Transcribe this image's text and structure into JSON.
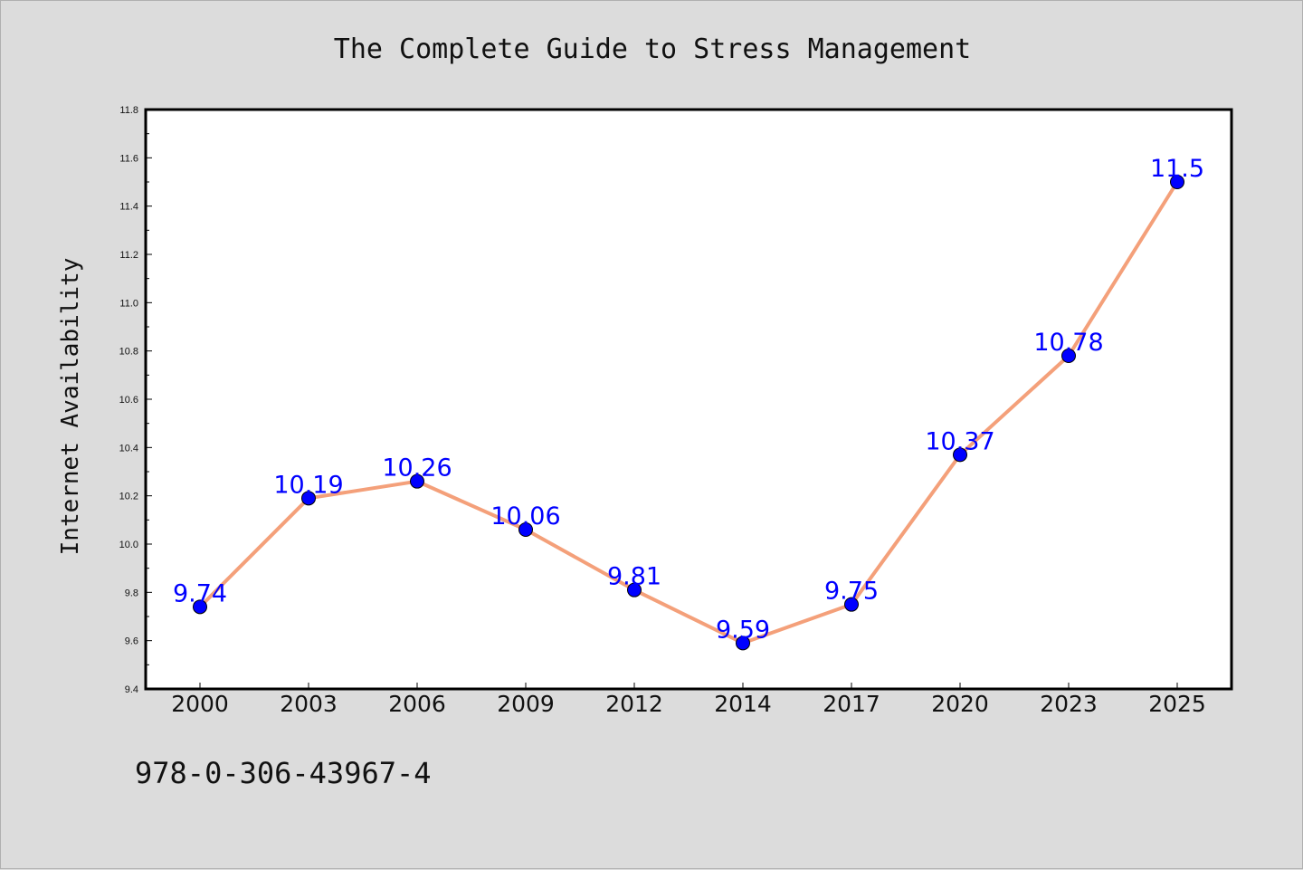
{
  "chart_data": {
    "type": "line",
    "title": "The Complete Guide to Stress Management",
    "xlabel": "",
    "ylabel": "Internet Availability",
    "categories": [
      "2000",
      "2003",
      "2006",
      "2009",
      "2012",
      "2014",
      "2017",
      "2020",
      "2023",
      "2025"
    ],
    "values": [
      9.74,
      10.19,
      10.26,
      10.06,
      9.81,
      9.59,
      9.75,
      10.37,
      10.78,
      11.5
    ],
    "data_labels": [
      "9.74",
      "10.19",
      "10.26",
      "10.06",
      "9.81",
      "9.59",
      "9.75",
      "10.37",
      "10.78",
      "11.5"
    ],
    "ylim": [
      9.4,
      11.8
    ],
    "yticks": [
      "9.4",
      "9.6",
      "9.8",
      "10.0",
      "10.2",
      "10.4",
      "10.6",
      "10.8",
      "11.0",
      "11.2",
      "11.4",
      "11.6",
      "11.8"
    ],
    "grid": false,
    "legend": "none",
    "line_color": "#f4a07a",
    "marker_color": "#0000ff",
    "label_color": "#0000ff",
    "plot_background": "#ffffff",
    "figure_background": "#dcdcdc"
  },
  "footer_text": "978-0-306-43967-4"
}
